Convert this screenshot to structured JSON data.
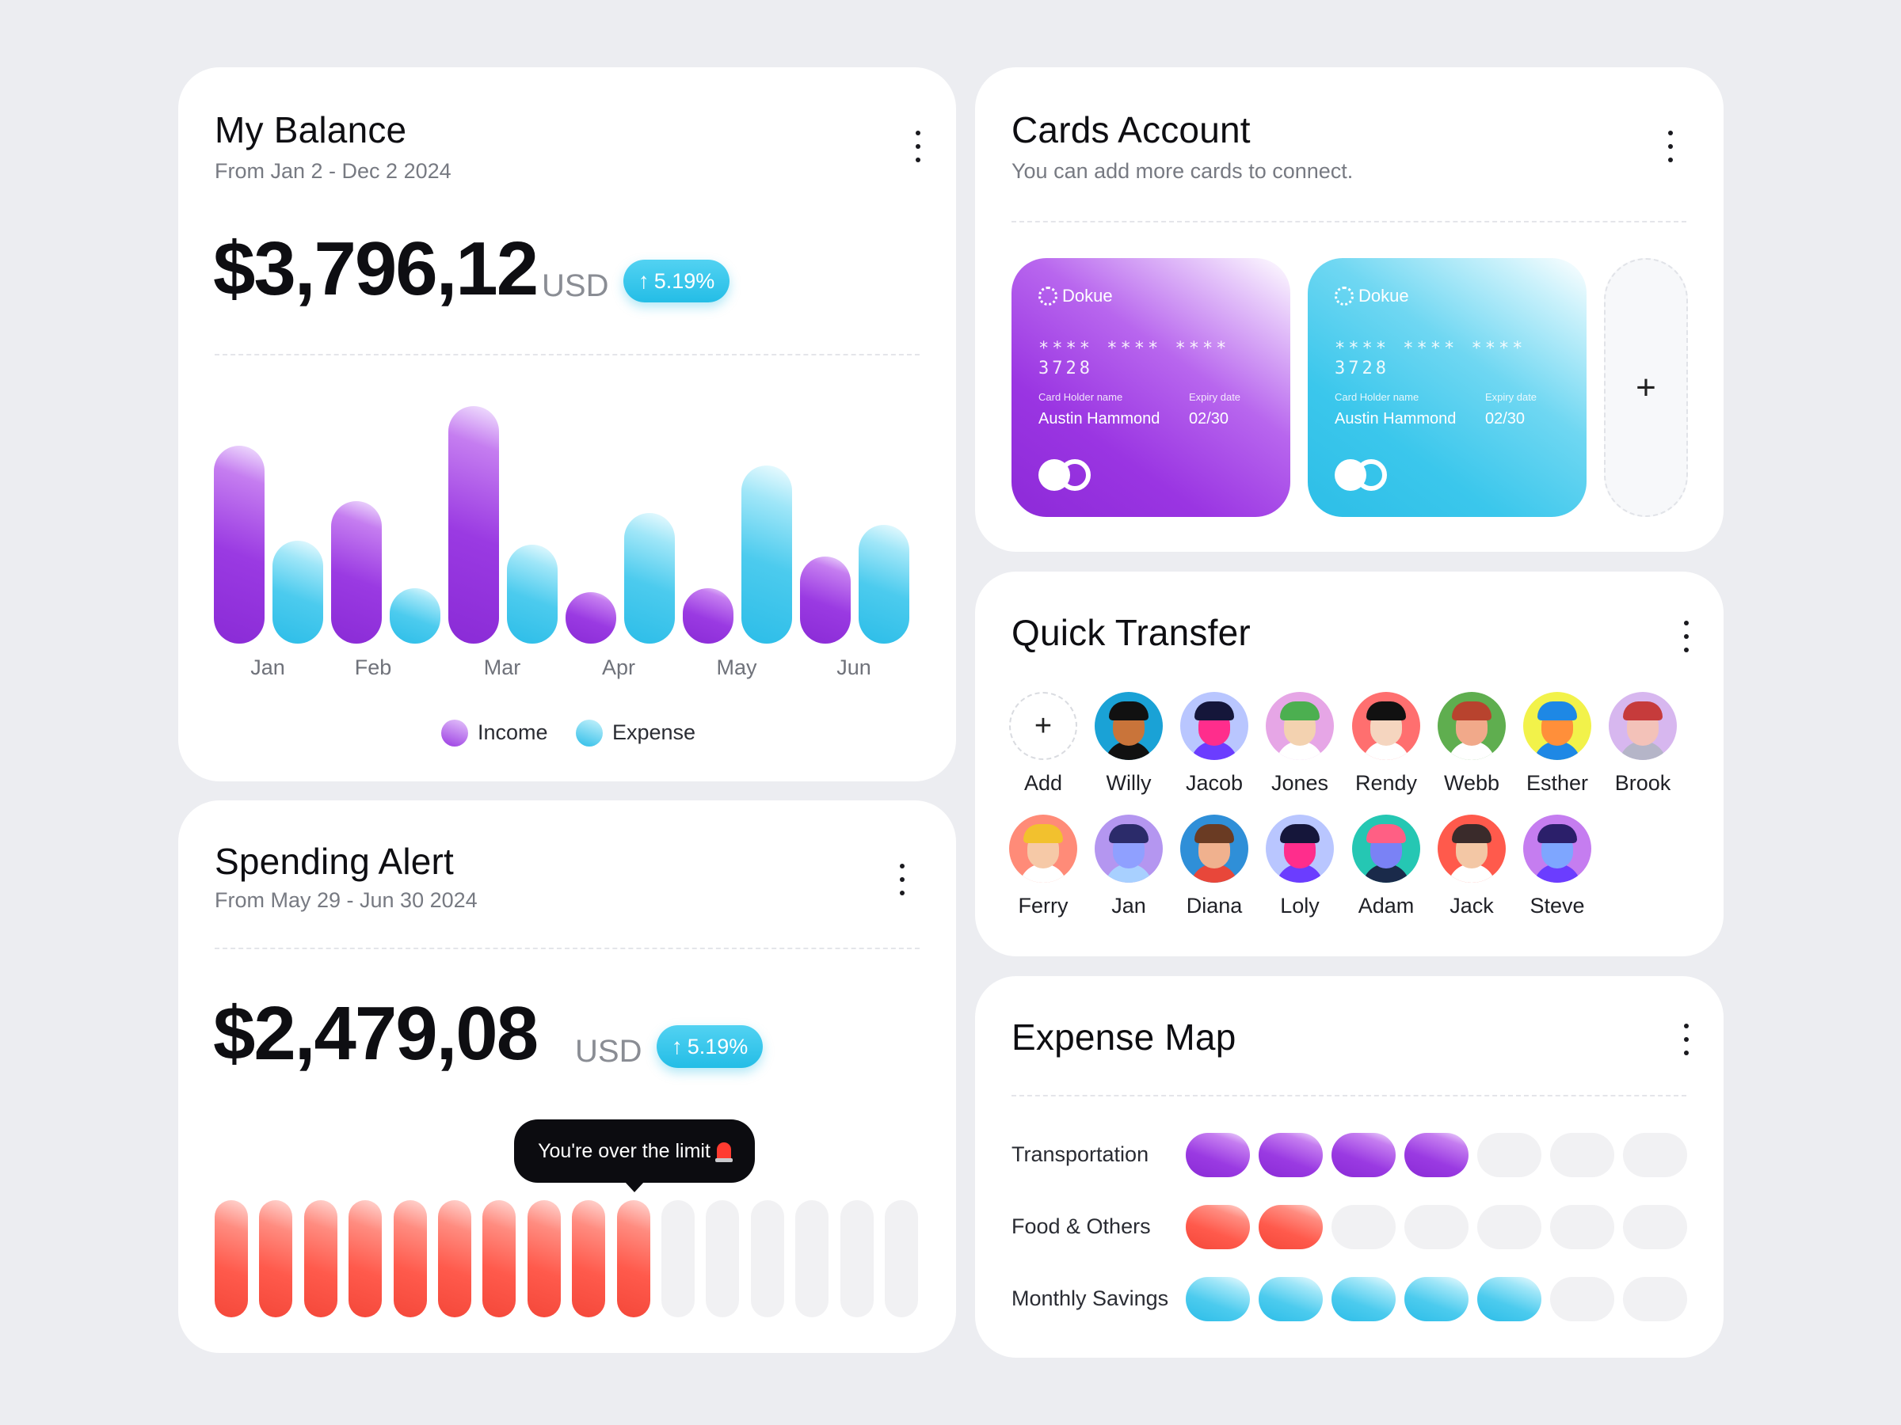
{
  "balance": {
    "title": "My Balance",
    "subtitle": "From Jan 2 - Dec 2 2024",
    "amount": "$3,796,12",
    "currency": "USD",
    "change": "5.19%",
    "legend": {
      "income": "Income",
      "expense": "Expense"
    }
  },
  "chart_data": {
    "type": "bar",
    "categories": [
      "Jan",
      "Feb",
      "Mar",
      "Apr",
      "May",
      "Jun"
    ],
    "series": [
      {
        "name": "Income",
        "values": [
          250,
          180,
          300,
          65,
          70,
          110
        ]
      },
      {
        "name": "Expense",
        "values": [
          130,
          70,
          125,
          165,
          225,
          150
        ]
      }
    ],
    "colors": {
      "Income": "#9A3AE2",
      "Expense": "#2CBDE8"
    },
    "title": "",
    "xlabel": "",
    "ylabel": "",
    "grid": false,
    "legend": "bottom"
  },
  "spending": {
    "title": "Spending Alert",
    "subtitle": "From May 29 - Jun 30 2024",
    "amount": "$2,479,08",
    "currency": "USD",
    "change": "5.19%",
    "tooltip": "You're over the limit",
    "filled": 10,
    "total": 16
  },
  "cards": {
    "title": "Cards Account",
    "subtitle": "You can add more cards to connect.",
    "items": [
      {
        "brand": "Dokue",
        "number": "**** **** **** 3728",
        "holder_label": "Card Holder name",
        "holder": "Austin Hammond",
        "expiry_label": "Expiry date",
        "expiry": "02/30",
        "color": "purple"
      },
      {
        "brand": "Dokue",
        "number": "**** **** **** 3728",
        "holder_label": "Card Holder name",
        "holder": "Austin Hammond",
        "expiry_label": "Expiry date",
        "expiry": "02/30",
        "color": "cyan"
      }
    ],
    "add_symbol": "+"
  },
  "transfer": {
    "title": "Quick Transfer",
    "add_label": "Add",
    "add_symbol": "+",
    "people": [
      {
        "name": "Willy",
        "bg": "#1aa2d6",
        "skin": "#c9743a",
        "hair": "#111111",
        "shirt": "#111111"
      },
      {
        "name": "Jacob",
        "bg": "#b9c6ff",
        "skin": "#ff2d8c",
        "hair": "#15163a",
        "shirt": "#6b3dff"
      },
      {
        "name": "Jones",
        "bg": "#e6a6e6",
        "skin": "#f3d2b0",
        "hair": "#4caf50",
        "shirt": "#ffffff"
      },
      {
        "name": "Rendy",
        "bg": "#ff6f6f",
        "skin": "#f5d5bf",
        "hair": "#111111",
        "shirt": "#ffffff"
      },
      {
        "name": "Webb",
        "bg": "#5fae4f",
        "skin": "#f1a98a",
        "hair": "#b8432e",
        "shirt": "#ffffff"
      },
      {
        "name": "Esther",
        "bg": "#f2f24a",
        "skin": "#ff8f3a",
        "hair": "#1e88e5",
        "shirt": "#1e88e5"
      },
      {
        "name": "Brook",
        "bg": "#d7b7ef",
        "skin": "#f3c2b9",
        "hair": "#c63b3b",
        "shirt": "#b5b5c8"
      },
      {
        "name": "Ferry",
        "bg": "#ff8b78",
        "skin": "#f6c9a7",
        "hair": "#f2c12e",
        "shirt": "#ffffff"
      },
      {
        "name": "Jan",
        "bg": "#b496f0",
        "skin": "#8fa0ff",
        "hair": "#2b2b6a",
        "shirt": "#a8d0ff"
      },
      {
        "name": "Diana",
        "bg": "#2f8fd8",
        "skin": "#f0b18e",
        "hair": "#6a3b23",
        "shirt": "#e8473a"
      },
      {
        "name": "Loly",
        "bg": "#b9c6ff",
        "skin": "#ff2d8c",
        "hair": "#15163a",
        "shirt": "#6b3dff"
      },
      {
        "name": "Adam",
        "bg": "#25c7b3",
        "skin": "#7a82f5",
        "hair": "#ff5f84",
        "shirt": "#1a2a4a"
      },
      {
        "name": "Jack",
        "bg": "#ff5a4c",
        "skin": "#f3c7a5",
        "hair": "#3a2b2b",
        "shirt": "#ffffff"
      },
      {
        "name": "Steve",
        "bg": "#c57df0",
        "skin": "#7ea6ff",
        "hair": "#2b1f6a",
        "shirt": "#6b3dff"
      }
    ]
  },
  "expense_map": {
    "title": "Expense Map",
    "rows": [
      {
        "label": "Transportation",
        "filled": 4,
        "total": 7,
        "color": "purple"
      },
      {
        "label": "Food & Others",
        "filled": 2,
        "total": 7,
        "color": "red"
      },
      {
        "label": "Monthly Savings",
        "filled": 5,
        "total": 7,
        "color": "cyan"
      }
    ]
  }
}
